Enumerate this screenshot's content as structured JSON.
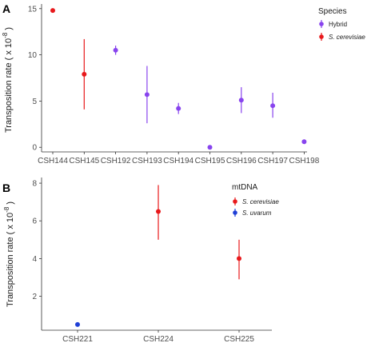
{
  "chart_data": [
    {
      "panel": "A",
      "type": "scatter",
      "ylabel": "Transposition rate ( x 10",
      "ylabel_exp": "-8",
      "ylabel_close": ")",
      "categories": [
        "CSH144",
        "CSH145",
        "CSH192",
        "CSH193",
        "CSH194",
        "CSH195",
        "CSH196",
        "CSH197",
        "CSH198"
      ],
      "yticks": [
        0,
        5,
        10,
        15
      ],
      "ylim": [
        -0.5,
        15.5
      ],
      "legend": {
        "title": "Species",
        "position": "top-right"
      },
      "series": [
        {
          "name": "Hybrid",
          "color": "#8844ee",
          "points": [
            {
              "x": "CSH192",
              "y": 10.5,
              "lo": 10.0,
              "hi": 11.0
            },
            {
              "x": "CSH193",
              "y": 5.7,
              "lo": 2.6,
              "hi": 8.8
            },
            {
              "x": "CSH194",
              "y": 4.2,
              "lo": 3.6,
              "hi": 4.8
            },
            {
              "x": "CSH195",
              "y": 0.0,
              "lo": 0.0,
              "hi": 0.0
            },
            {
              "x": "CSH196",
              "y": 5.1,
              "lo": 3.7,
              "hi": 6.5
            },
            {
              "x": "CSH197",
              "y": 4.5,
              "lo": 3.2,
              "hi": 5.9
            },
            {
              "x": "CSH198",
              "y": 0.6,
              "lo": 0.6,
              "hi": 0.6
            }
          ]
        },
        {
          "name": "S. cerevisiae",
          "color": "#e8191c",
          "points": [
            {
              "x": "CSH144",
              "y": 14.8,
              "lo": 14.6,
              "hi": 15.0
            },
            {
              "x": "CSH145",
              "y": 7.9,
              "lo": 4.1,
              "hi": 11.7
            }
          ]
        }
      ]
    },
    {
      "panel": "B",
      "type": "scatter",
      "ylabel": "Transposition rate ( x 10",
      "ylabel_exp": "-8",
      "ylabel_close": ")",
      "categories": [
        "CSH221",
        "CSH224",
        "CSH225"
      ],
      "yticks": [
        2,
        4,
        6,
        8
      ],
      "ylim": [
        0.2,
        8.3
      ],
      "legend": {
        "title": "mtDNA",
        "position": "top-right"
      },
      "series": [
        {
          "name": "S. cerevisiae",
          "color": "#e8191c",
          "points": [
            {
              "x": "CSH224",
              "y": 6.5,
              "lo": 5.0,
              "hi": 7.9
            },
            {
              "x": "CSH225",
              "y": 4.0,
              "lo": 2.9,
              "hi": 5.0
            }
          ]
        },
        {
          "name": "S. uvarum",
          "color": "#1f3fd6",
          "points": [
            {
              "x": "CSH221",
              "y": 0.5,
              "lo": 0.5,
              "hi": 0.5
            }
          ]
        }
      ]
    }
  ]
}
